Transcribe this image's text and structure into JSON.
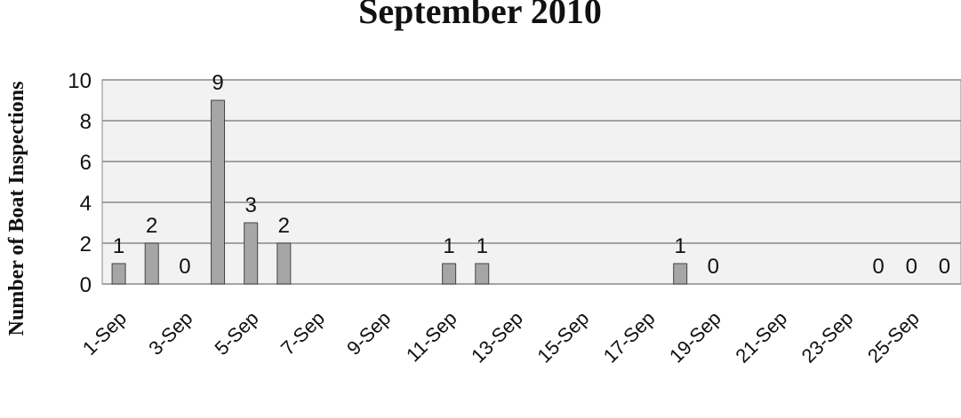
{
  "chart_data": {
    "type": "bar",
    "title": "September 2010",
    "y_label": "Number of Boat Inspections",
    "categories": [
      "1-Sep",
      null,
      "3-Sep",
      null,
      "5-Sep",
      null,
      "7-Sep",
      null,
      "9-Sep",
      null,
      "11-Sep",
      null,
      "13-Sep",
      null,
      "15-Sep",
      null,
      "17-Sep",
      null,
      "19-Sep",
      null,
      "21-Sep",
      null,
      "23-Sep",
      null,
      "25-Sep",
      null
    ],
    "values": [
      1,
      2,
      0,
      9,
      3,
      2,
      null,
      null,
      null,
      null,
      1,
      1,
      null,
      null,
      null,
      null,
      null,
      1,
      0,
      null,
      null,
      null,
      null,
      0,
      0,
      0
    ],
    "color": "#a6a6a6",
    "ylim": [
      0,
      10
    ],
    "yticks": [
      0,
      2,
      4,
      6,
      8,
      10
    ],
    "grid": true
  }
}
